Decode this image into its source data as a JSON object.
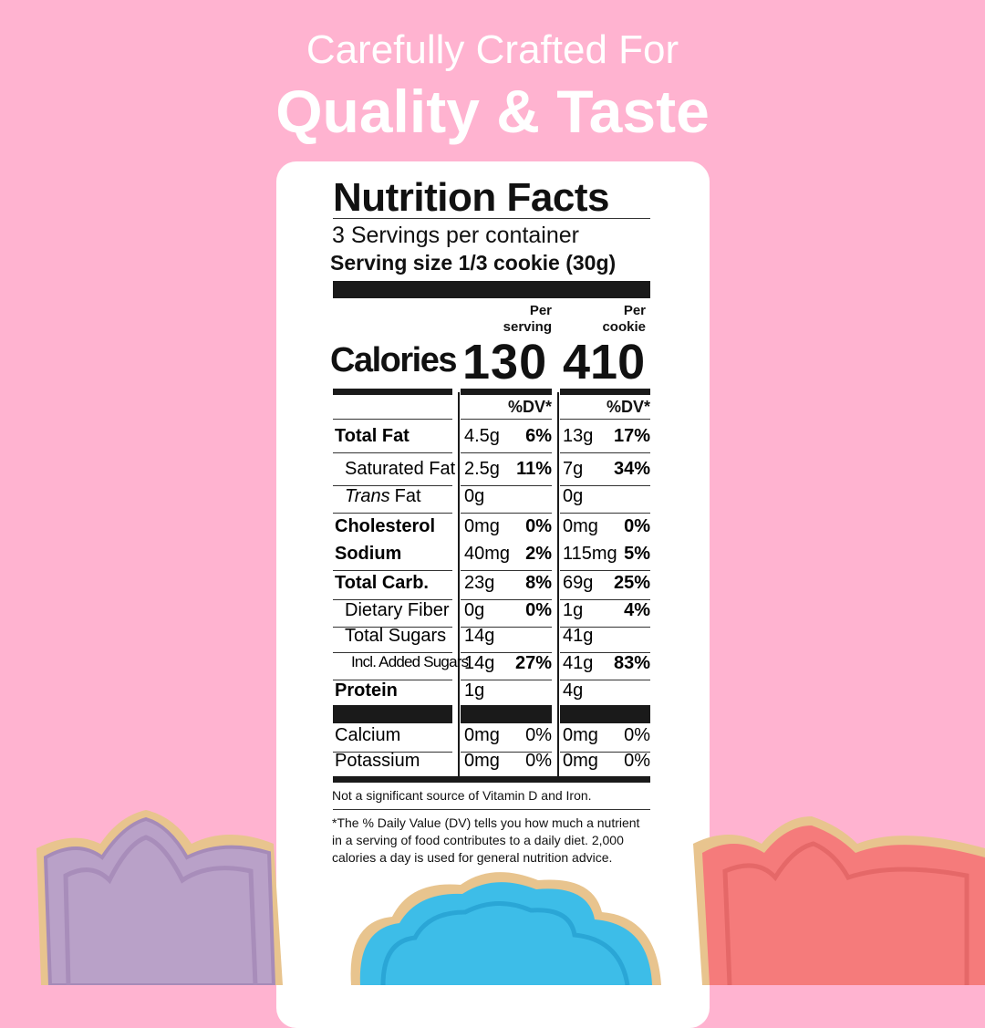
{
  "header": {
    "line1": "Carefully Crafted For",
    "line2": "Quality & Taste"
  },
  "label": {
    "title": "Nutrition Facts",
    "servings": "3 Servings per container",
    "serving_size": "Serving size 1/3 cookie (30g)",
    "column_headers": [
      [
        "Per",
        "serving"
      ],
      [
        "Per",
        "cookie"
      ]
    ],
    "calories_label": "Calories",
    "calories": [
      130,
      410
    ],
    "dv_headers": [
      "%DV*",
      "%DV*"
    ],
    "rows": [
      {
        "name": "Total Fat",
        "serving": [
          "4.5g",
          "6%"
        ],
        "cookie": [
          "13g",
          "17%"
        ]
      },
      {
        "name": "Saturated Fat",
        "serving": [
          "2.5g",
          "11%"
        ],
        "cookie": [
          "7g",
          "34%"
        ]
      },
      {
        "name_italic": "Trans",
        "name": "Fat",
        "serving": [
          "0g"
        ],
        "cookie": [
          "0g"
        ]
      },
      {
        "name": "Cholesterol",
        "serving": [
          "0mg",
          "0%"
        ],
        "cookie": [
          "0mg",
          "0%"
        ]
      },
      {
        "name": "Sodium",
        "serving": [
          "40mg",
          "2%"
        ],
        "cookie": [
          "115mg",
          "5%"
        ]
      },
      {
        "name": "Total Carb.",
        "serving": [
          "23g",
          "8%"
        ],
        "cookie": [
          "69g",
          "25%"
        ]
      },
      {
        "name": "Dietary Fiber",
        "serving": [
          "0g",
          "0%"
        ],
        "cookie": [
          "1g",
          "4%"
        ]
      },
      {
        "name": "Total Sugars",
        "serving": [
          "14g"
        ],
        "cookie": [
          "41g"
        ]
      },
      {
        "name": "Incl. Added Sugars",
        "serving": [
          "14g",
          "27%"
        ],
        "cookie": [
          "41g",
          "83%"
        ]
      },
      {
        "name": "Protein",
        "serving": [
          "1g"
        ],
        "cookie": [
          "4g"
        ]
      }
    ],
    "minerals": [
      {
        "name": "Calcium",
        "serving": [
          "0mg",
          "0%"
        ],
        "cookie": [
          "0mg",
          "0%"
        ]
      },
      {
        "name": "Potassium",
        "serving": [
          "0mg",
          "0%"
        ],
        "cookie": [
          "0mg",
          "0%"
        ]
      }
    ],
    "footnote_1": "Not a significant source of Vitamin D and Iron.",
    "footnote_2": "*The % Daily Value (DV) tells you how much a nutrient in a serving of food contributes to a daily diet. 2,000 calories a day is used for general nutrition advice."
  }
}
